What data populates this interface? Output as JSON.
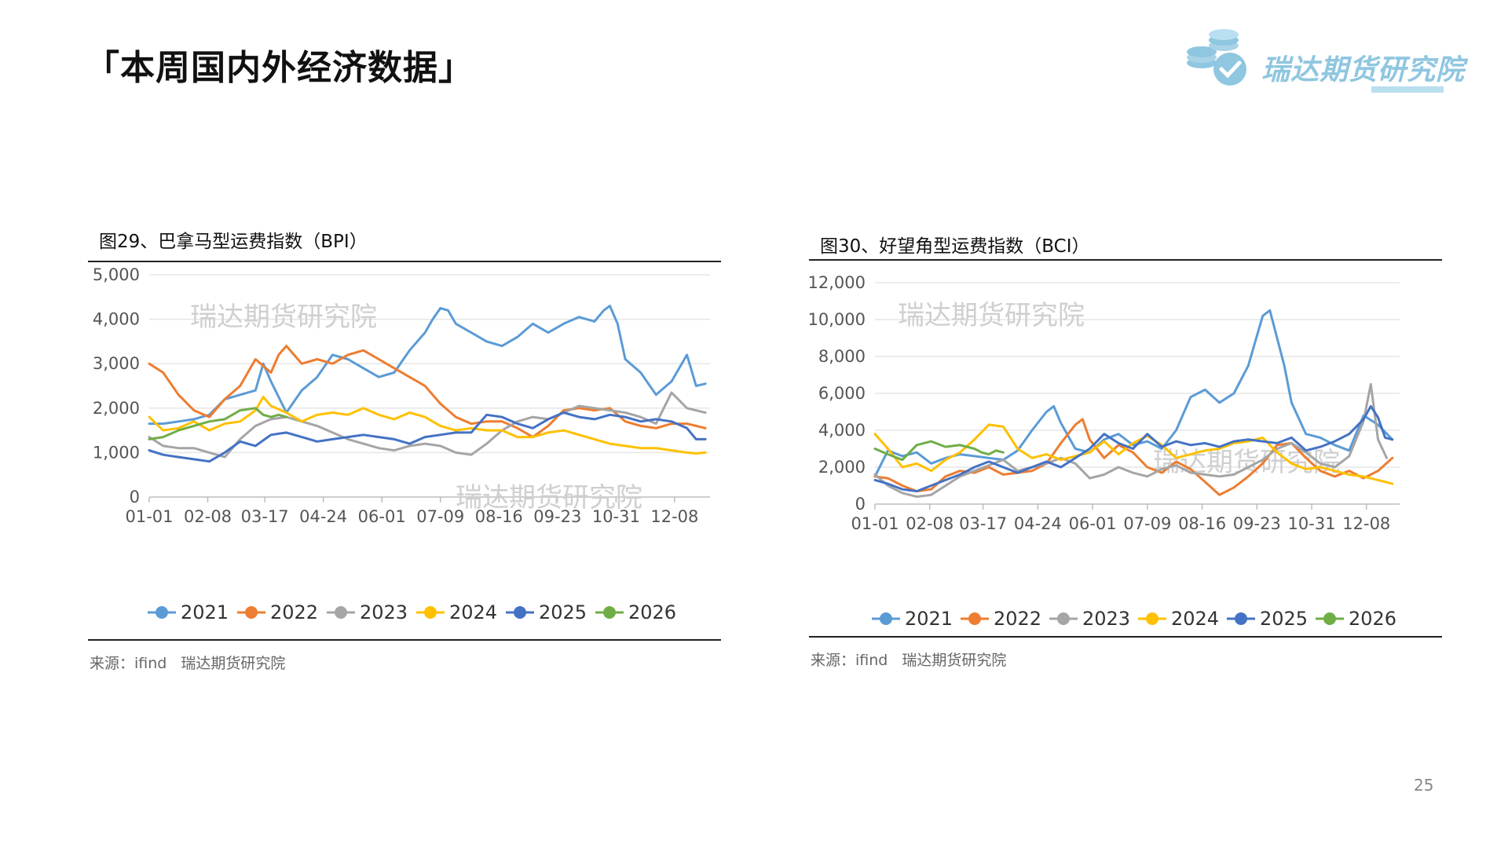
{
  "page": {
    "title": "「本周国内外经济数据」",
    "logo_text": "瑞达期货研究院",
    "page_number": "25"
  },
  "colors": {
    "2021": "#5b9bd5",
    "2022": "#ed7d31",
    "2023": "#a5a5a5",
    "2024": "#ffc000",
    "2025": "#4472c4",
    "2026": "#70ad47",
    "grid": "#e6e6e6",
    "logo": "#8fc6e0"
  },
  "icons": {
    "logo": "coin-stack-checkmark-icon",
    "legend_marker": "line-with-circle-marker-icon"
  },
  "charts": [
    {
      "figure_title": "图29、巴拿马型运费指数（BPI）",
      "source": {
        "label": "来源：ifind",
        "org": "瑞达期货研究院"
      },
      "watermarks": [
        "瑞达期货研究院",
        "瑞达期货研究院"
      ]
    },
    {
      "figure_title": "图30、好望角型运费指数（BCI）",
      "source": {
        "label": "来源：ifind",
        "org": "瑞达期货研究院"
      },
      "watermarks": [
        "瑞达期货研究院",
        "瑞达期货研究院"
      ]
    }
  ],
  "chart_data": [
    {
      "type": "line",
      "x_ticks": [
        "01-01",
        "02-08",
        "03-17",
        "04-24",
        "06-01",
        "07-09",
        "08-16",
        "09-23",
        "10-31",
        "12-08"
      ],
      "x_tick_days": [
        1,
        39,
        76,
        114,
        152,
        190,
        228,
        266,
        304,
        342
      ],
      "y_ticks": [
        "0",
        "1,000",
        "2,000",
        "3,000",
        "4,000",
        "5,000"
      ],
      "ylim": [
        0,
        5000
      ],
      "xlim": [
        1,
        365
      ],
      "grid": "horizontal",
      "legend_position": "bottom",
      "series": [
        {
          "name": "2021",
          "days": [
            1,
            10,
            20,
            30,
            40,
            50,
            60,
            70,
            75,
            80,
            90,
            100,
            110,
            120,
            130,
            140,
            150,
            160,
            170,
            180,
            185,
            190,
            195,
            200,
            210,
            220,
            230,
            240,
            250,
            260,
            270,
            280,
            290,
            296,
            300,
            305,
            310,
            320,
            330,
            340,
            350,
            356,
            362
          ],
          "values": [
            1650,
            1650,
            1700,
            1750,
            1850,
            2200,
            2300,
            2400,
            3000,
            2600,
            1900,
            2400,
            2700,
            3200,
            3100,
            2900,
            2700,
            2800,
            3300,
            3700,
            4000,
            4250,
            4200,
            3900,
            3700,
            3500,
            3400,
            3600,
            3900,
            3700,
            3900,
            4050,
            3950,
            4200,
            4300,
            3900,
            3100,
            2800,
            2300,
            2600,
            3200,
            2500,
            2550
          ]
        },
        {
          "name": "2022",
          "days": [
            1,
            10,
            20,
            30,
            40,
            50,
            60,
            70,
            80,
            85,
            90,
            100,
            110,
            120,
            130,
            140,
            150,
            160,
            170,
            180,
            190,
            200,
            210,
            220,
            230,
            240,
            250,
            260,
            270,
            280,
            290,
            300,
            310,
            320,
            330,
            340,
            350,
            362
          ],
          "values": [
            3000,
            2800,
            2300,
            1950,
            1800,
            2200,
            2500,
            3100,
            2800,
            3200,
            3400,
            3000,
            3100,
            3000,
            3200,
            3300,
            3100,
            2900,
            2700,
            2500,
            2100,
            1800,
            1650,
            1700,
            1700,
            1550,
            1350,
            1600,
            1950,
            2000,
            1950,
            2000,
            1700,
            1600,
            1550,
            1650,
            1650,
            1550
          ]
        },
        {
          "name": "2023",
          "days": [
            1,
            10,
            20,
            30,
            40,
            50,
            60,
            70,
            80,
            90,
            100,
            110,
            120,
            130,
            140,
            150,
            160,
            170,
            180,
            190,
            200,
            210,
            220,
            230,
            240,
            250,
            260,
            270,
            280,
            290,
            300,
            310,
            320,
            330,
            340,
            350,
            362
          ],
          "values": [
            1350,
            1150,
            1100,
            1100,
            1000,
            900,
            1300,
            1600,
            1750,
            1800,
            1700,
            1600,
            1450,
            1300,
            1200,
            1100,
            1050,
            1150,
            1200,
            1150,
            1000,
            950,
            1200,
            1500,
            1700,
            1800,
            1750,
            1900,
            2050,
            2000,
            1950,
            1900,
            1800,
            1650,
            2350,
            2000,
            1900
          ]
        },
        {
          "name": "2024",
          "days": [
            1,
            10,
            20,
            30,
            40,
            50,
            60,
            70,
            75,
            80,
            90,
            100,
            110,
            120,
            130,
            140,
            150,
            160,
            170,
            180,
            190,
            200,
            210,
            220,
            230,
            240,
            250,
            260,
            270,
            280,
            290,
            300,
            310,
            320,
            330,
            340,
            350,
            356,
            362
          ],
          "values": [
            1800,
            1500,
            1550,
            1700,
            1500,
            1650,
            1700,
            1950,
            2250,
            2050,
            1900,
            1700,
            1850,
            1900,
            1850,
            2000,
            1850,
            1750,
            1900,
            1800,
            1600,
            1500,
            1550,
            1500,
            1500,
            1350,
            1350,
            1450,
            1500,
            1400,
            1300,
            1200,
            1150,
            1100,
            1100,
            1050,
            1000,
            980,
            1000
          ]
        },
        {
          "name": "2025",
          "days": [
            1,
            10,
            20,
            30,
            40,
            50,
            60,
            70,
            80,
            90,
            100,
            110,
            120,
            130,
            140,
            150,
            160,
            170,
            180,
            190,
            200,
            210,
            220,
            230,
            240,
            250,
            260,
            270,
            280,
            290,
            300,
            310,
            320,
            330,
            340,
            350,
            356,
            362
          ],
          "values": [
            1050,
            950,
            900,
            850,
            800,
            1000,
            1250,
            1150,
            1400,
            1450,
            1350,
            1250,
            1300,
            1350,
            1400,
            1350,
            1300,
            1200,
            1350,
            1400,
            1450,
            1450,
            1850,
            1800,
            1650,
            1550,
            1750,
            1900,
            1800,
            1750,
            1850,
            1800,
            1700,
            1750,
            1700,
            1550,
            1300,
            1300
          ]
        },
        {
          "name": "2026",
          "days": [
            1,
            10,
            20,
            30,
            40,
            50,
            60,
            70,
            75,
            80,
            85,
            90
          ],
          "values": [
            1300,
            1350,
            1500,
            1600,
            1700,
            1750,
            1950,
            2000,
            1850,
            1800,
            1850,
            1800
          ]
        }
      ]
    },
    {
      "type": "line",
      "x_ticks": [
        "01-01",
        "02-08",
        "03-17",
        "04-24",
        "06-01",
        "07-09",
        "08-16",
        "09-23",
        "10-31",
        "12-08"
      ],
      "x_tick_days": [
        1,
        39,
        76,
        114,
        152,
        190,
        228,
        266,
        304,
        342
      ],
      "y_ticks": [
        "0",
        "2,000",
        "4,000",
        "6,000",
        "8,000",
        "10,000",
        "12,000"
      ],
      "ylim": [
        0,
        12000
      ],
      "xlim": [
        1,
        365
      ],
      "grid": "horizontal",
      "legend_position": "bottom",
      "series": [
        {
          "name": "2021",
          "days": [
            1,
            10,
            20,
            30,
            40,
            50,
            60,
            70,
            80,
            90,
            100,
            110,
            120,
            125,
            130,
            140,
            150,
            160,
            170,
            180,
            190,
            200,
            210,
            220,
            230,
            240,
            250,
            260,
            270,
            275,
            280,
            285,
            290,
            300,
            310,
            320,
            330,
            340,
            350,
            360
          ],
          "values": [
            1500,
            2900,
            2600,
            2800,
            2200,
            2500,
            2700,
            2600,
            2500,
            2400,
            2900,
            4000,
            5000,
            5300,
            4400,
            3000,
            2800,
            3500,
            3800,
            3200,
            3400,
            3000,
            4000,
            5800,
            6200,
            5500,
            6000,
            7500,
            10200,
            10500,
            9000,
            7500,
            5500,
            3800,
            3600,
            3200,
            2900,
            4800,
            4300,
            3500
          ]
        },
        {
          "name": "2022",
          "days": [
            1,
            10,
            20,
            30,
            40,
            50,
            60,
            70,
            80,
            90,
            100,
            110,
            120,
            130,
            140,
            145,
            150,
            160,
            170,
            180,
            190,
            200,
            210,
            220,
            230,
            240,
            250,
            260,
            270,
            280,
            290,
            300,
            310,
            320,
            330,
            340,
            350,
            360
          ],
          "values": [
            1500,
            1400,
            1000,
            700,
            800,
            1500,
            1800,
            1700,
            2000,
            1600,
            1700,
            1800,
            2200,
            3300,
            4300,
            4600,
            3500,
            2500,
            3200,
            2800,
            2000,
            1700,
            2300,
            1900,
            1200,
            500,
            900,
            1500,
            2200,
            3200,
            3300,
            2500,
            1800,
            1500,
            1800,
            1400,
            1800,
            2500
          ]
        },
        {
          "name": "2023",
          "days": [
            1,
            10,
            20,
            30,
            40,
            50,
            60,
            70,
            80,
            90,
            100,
            110,
            120,
            130,
            140,
            150,
            160,
            170,
            180,
            190,
            200,
            210,
            220,
            230,
            240,
            250,
            260,
            270,
            280,
            290,
            300,
            310,
            320,
            330,
            340,
            345,
            350,
            356
          ],
          "values": [
            1600,
            1000,
            600,
            400,
            500,
            1000,
            1500,
            1800,
            2100,
            2400,
            1800,
            2000,
            2200,
            2500,
            2200,
            1400,
            1600,
            2000,
            1700,
            1500,
            1900,
            2100,
            1700,
            1600,
            1500,
            1600,
            2000,
            2400,
            3000,
            3300,
            2800,
            2200,
            2000,
            2600,
            4500,
            6500,
            3500,
            2500
          ]
        },
        {
          "name": "2024",
          "days": [
            1,
            10,
            20,
            30,
            40,
            50,
            60,
            70,
            80,
            90,
            100,
            110,
            120,
            130,
            140,
            150,
            160,
            170,
            180,
            190,
            200,
            210,
            220,
            230,
            240,
            250,
            260,
            270,
            280,
            290,
            300,
            310,
            320,
            330,
            340,
            350,
            360
          ],
          "values": [
            3800,
            3000,
            2000,
            2200,
            1800,
            2400,
            2800,
            3500,
            4300,
            4200,
            3000,
            2500,
            2700,
            2400,
            2600,
            2800,
            3400,
            2700,
            3300,
            3700,
            3200,
            2500,
            2700,
            2900,
            3000,
            3300,
            3400,
            3600,
            2800,
            2200,
            1900,
            2000,
            1800,
            1600,
            1500,
            1300,
            1100
          ]
        },
        {
          "name": "2025",
          "days": [
            1,
            10,
            20,
            30,
            40,
            50,
            60,
            70,
            80,
            90,
            100,
            110,
            120,
            130,
            140,
            150,
            160,
            170,
            180,
            190,
            200,
            210,
            220,
            230,
            240,
            250,
            260,
            270,
            280,
            290,
            300,
            310,
            320,
            330,
            340,
            345,
            350,
            355,
            360
          ],
          "values": [
            1300,
            1100,
            800,
            700,
            1000,
            1300,
            1600,
            2000,
            2300,
            2000,
            1700,
            2000,
            2300,
            2000,
            2500,
            3000,
            3800,
            3300,
            3000,
            3800,
            3100,
            3400,
            3200,
            3300,
            3100,
            3400,
            3500,
            3400,
            3300,
            3600,
            2900,
            3100,
            3400,
            3800,
            4600,
            5300,
            4700,
            3600,
            3500
          ]
        },
        {
          "name": "2026",
          "days": [
            1,
            10,
            20,
            30,
            40,
            50,
            60,
            70,
            75,
            80,
            85,
            90
          ],
          "values": [
            3000,
            2700,
            2400,
            3200,
            3400,
            3100,
            3200,
            3000,
            2800,
            2700,
            2900,
            2800
          ]
        }
      ]
    }
  ]
}
